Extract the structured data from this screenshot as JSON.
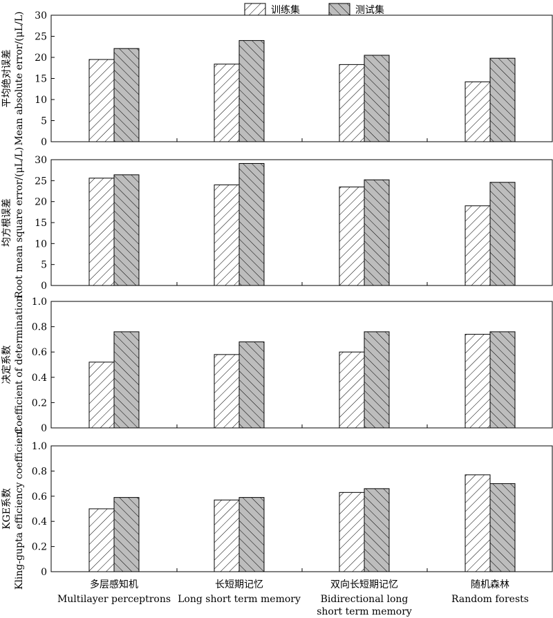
{
  "legend": {
    "items": [
      {
        "label": "训练集",
        "pattern": "hatch-forward",
        "fill": "#ffffff"
      },
      {
        "label": "测试集",
        "pattern": "hatch-backward",
        "fill": "#bdbdbd"
      }
    ],
    "position": "top-center"
  },
  "categories": [
    {
      "zh": "多层感知机",
      "en": [
        "Multilayer perceptrons"
      ]
    },
    {
      "zh": "长短期记忆",
      "en": [
        "Long short term memory"
      ]
    },
    {
      "zh": "双向长短期记忆",
      "en": [
        "Bidirectional long",
        "short term memory"
      ]
    },
    {
      "zh": "随机森林",
      "en": [
        "Random forests"
      ]
    }
  ],
  "chart_data": [
    {
      "type": "bar",
      "ylabel_zh": "平均绝对误差",
      "ylabel_en": "Mean absolute error/(μL/L)",
      "ylim": [
        0,
        30
      ],
      "yticks": [
        "0",
        "5",
        "10",
        "15",
        "20",
        "25",
        "30"
      ],
      "categories": [
        "多层感知机",
        "长短期记忆",
        "双向长短期记忆",
        "随机森林"
      ],
      "series": [
        {
          "name": "训练集",
          "values": [
            19.5,
            18.4,
            18.3,
            14.2
          ]
        },
        {
          "name": "测试集",
          "values": [
            22.1,
            24.0,
            20.5,
            19.8
          ]
        }
      ]
    },
    {
      "type": "bar",
      "ylabel_zh": "均方根误差",
      "ylabel_en": "Root mean square error/(μL/L)",
      "ylim": [
        0,
        30
      ],
      "yticks": [
        "0",
        "5",
        "10",
        "15",
        "20",
        "25",
        "30"
      ],
      "categories": [
        "多层感知机",
        "长短期记忆",
        "双向长短期记忆",
        "随机森林"
      ],
      "series": [
        {
          "name": "训练集",
          "values": [
            25.6,
            24.0,
            23.5,
            19.0
          ]
        },
        {
          "name": "测试集",
          "values": [
            26.4,
            29.1,
            25.2,
            24.6
          ]
        }
      ]
    },
    {
      "type": "bar",
      "ylabel_zh": "决定系数",
      "ylabel_en": "Coefficient of determination",
      "ylim": [
        0,
        1.0
      ],
      "yticks": [
        "0",
        "0.2",
        "0.4",
        "0.6",
        "0.8",
        "1.0"
      ],
      "categories": [
        "多层感知机",
        "长短期记忆",
        "双向长短期记忆",
        "随机森林"
      ],
      "series": [
        {
          "name": "训练集",
          "values": [
            0.52,
            0.58,
            0.6,
            0.74
          ]
        },
        {
          "name": "测试集",
          "values": [
            0.76,
            0.68,
            0.76,
            0.76
          ]
        }
      ]
    },
    {
      "type": "bar",
      "ylabel_zh": "KGE系数",
      "ylabel_en": "Kling-gupta efficiency coefficient",
      "ylim": [
        0,
        1.0
      ],
      "yticks": [
        "0",
        "0.2",
        "0.4",
        "0.6",
        "0.8",
        "1.0"
      ],
      "categories": [
        "多层感知机",
        "长短期记忆",
        "双向长短期记忆",
        "随机森林"
      ],
      "series": [
        {
          "name": "训练集",
          "values": [
            0.5,
            0.57,
            0.63,
            0.77
          ]
        },
        {
          "name": "测试集",
          "values": [
            0.59,
            0.59,
            0.66,
            0.7
          ]
        }
      ]
    }
  ]
}
